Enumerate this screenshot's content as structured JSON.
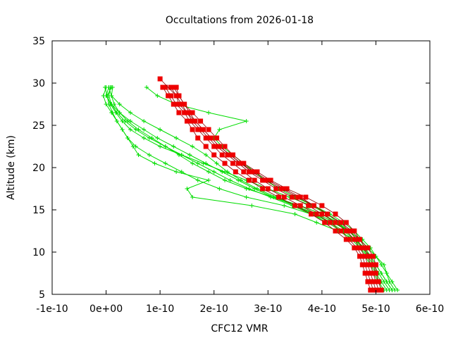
{
  "chart_data": {
    "type": "scatter",
    "title": "Occultations from 2026-01-18",
    "xlabel": "CFC12 VMR",
    "ylabel": "Altitude (km)",
    "xlim": [
      -1e-10,
      6e-10
    ],
    "ylim": [
      5,
      35
    ],
    "grid": false,
    "xticks": [
      {
        "value": -1e-10,
        "label": "-1e-10"
      },
      {
        "value": 0,
        "label": "0e+00"
      },
      {
        "value": 1e-10,
        "label": "1e-10"
      },
      {
        "value": 2e-10,
        "label": "2e-10"
      },
      {
        "value": 3e-10,
        "label": "3e-10"
      },
      {
        "value": 4e-10,
        "label": "4e-10"
      },
      {
        "value": 5e-10,
        "label": "5e-10"
      },
      {
        "value": 6e-10,
        "label": "6e-10"
      }
    ],
    "yticks": [
      {
        "value": 5,
        "label": "5"
      },
      {
        "value": 10,
        "label": "10"
      },
      {
        "value": 15,
        "label": "15"
      },
      {
        "value": 20,
        "label": "20"
      },
      {
        "value": 25,
        "label": "25"
      },
      {
        "value": 30,
        "label": "30"
      },
      {
        "value": 35,
        "label": "35"
      }
    ],
    "altitudes": [
      5.5,
      6.5,
      7.5,
      8.5,
      9.5,
      10.5,
      11.5,
      12.5,
      13.5,
      14.5,
      15.5,
      16.5,
      17.5,
      18.5,
      19.5,
      20.5,
      21.5,
      22.5,
      23.5,
      24.5,
      25.5,
      26.5,
      27.5,
      28.5,
      29.5
    ],
    "series": [
      {
        "name": "occultation-1",
        "color": "#00dd00",
        "marker": "plus",
        "x": [
          5.3e-10,
          5.2e-10,
          5.1e-10,
          5e-10,
          4.9e-10,
          4.8e-10,
          4.6e-10,
          4.3e-10,
          3.9e-10,
          3.5e-10,
          2.7e-10,
          1.6e-10,
          1.5e-10,
          1.9e-10,
          1.3e-10,
          9e-11,
          6e-11,
          5e-11,
          4e-11,
          3e-11,
          2e-11,
          1e-11,
          0.0,
          -5e-12,
          0.0
        ],
        "y": [
          5.5,
          6.5,
          7.5,
          8.5,
          9.5,
          10.5,
          11.5,
          12.5,
          13.5,
          14.5,
          15.5,
          16.5,
          17.5,
          18.5,
          19.5,
          20.5,
          21.5,
          22.5,
          23.5,
          24.5,
          25.5,
          26.5,
          27.5,
          28.5,
          29.5
        ]
      },
      {
        "name": "occultation-2",
        "color": "#00dd00",
        "marker": "plus",
        "x": [
          5.4e-10,
          5.3e-10,
          5.2e-10,
          5.15e-10,
          5e-10,
          4.85e-10,
          4.7e-10,
          4.5e-10,
          4.2e-10,
          3.8e-10,
          3.3e-10,
          2.6e-10,
          2.1e-10,
          1.7e-10,
          1.4e-10,
          1.1e-10,
          8e-11,
          5.5e-11,
          4e-11,
          3e-11,
          2e-11,
          1.2e-11,
          5e-12,
          2e-12,
          1e-11
        ],
        "y": [
          5.5,
          6.5,
          7.5,
          8.5,
          9.5,
          10.5,
          11.5,
          12.5,
          13.5,
          14.5,
          15.5,
          16.5,
          17.5,
          18.5,
          19.5,
          20.5,
          21.5,
          22.5,
          23.5,
          24.5,
          25.5,
          26.5,
          27.5,
          28.5,
          29.5
        ]
      },
      {
        "name": "occultation-3",
        "color": "#00dd00",
        "marker": "plus",
        "x": [
          5.25e-10,
          5.15e-10,
          5.05e-10,
          4.95e-10,
          4.85e-10,
          4.7e-10,
          4.55e-10,
          4.35e-10,
          4.1e-10,
          3.8e-10,
          3.45e-10,
          3.05e-10,
          2.65e-10,
          2.3e-10,
          2e-10,
          1.7e-10,
          1.4e-10,
          1.1e-10,
          8e-11,
          5.5e-11,
          3.5e-11,
          2e-11,
          1e-11,
          5e-12,
          8e-12
        ],
        "y": [
          5.5,
          6.5,
          7.5,
          8.5,
          9.5,
          10.5,
          11.5,
          12.5,
          13.5,
          14.5,
          15.5,
          16.5,
          17.5,
          18.5,
          19.5,
          20.5,
          21.5,
          22.5,
          23.5,
          24.5,
          25.5,
          26.5,
          27.5,
          28.5,
          29.5
        ]
      },
      {
        "name": "occultation-4",
        "color": "#00dd00",
        "marker": "plus",
        "x": [
          5.1e-10,
          5.05e-10,
          5e-10,
          4.95e-10,
          4.9e-10,
          4.8e-10,
          4.7e-10,
          4.5e-10,
          4.25e-10,
          3.9e-10,
          3.5e-10,
          3.1e-10,
          2.75e-10,
          2.45e-10,
          2.15e-10,
          1.85e-10,
          1.55e-10,
          1.25e-10,
          9.5e-11,
          7e-11,
          4.5e-11,
          2.5e-11,
          1e-11,
          0.0,
          5e-12
        ],
        "y": [
          5.5,
          6.5,
          7.5,
          8.5,
          9.5,
          10.5,
          11.5,
          12.5,
          13.5,
          14.5,
          15.5,
          16.5,
          17.5,
          18.5,
          19.5,
          20.5,
          21.5,
          22.5,
          23.5,
          24.5,
          25.5,
          26.5,
          27.5,
          28.5,
          29.5
        ]
      },
      {
        "name": "occultation-5",
        "color": "#00dd00",
        "marker": "plus",
        "x": [
          5.35e-10,
          5.25e-10,
          5.2e-10,
          5.1e-10,
          5e-10,
          4.9e-10,
          4.75e-10,
          4.6e-10,
          4.4e-10,
          4.15e-10,
          3.85e-10,
          3.5e-10,
          3.2e-10,
          2.95e-10,
          2.75e-10,
          2.55e-10,
          2.35e-10,
          2.15e-10,
          2e-10,
          2.1e-10,
          2.6e-10,
          1.9e-10,
          1.3e-10,
          9.5e-11,
          7.5e-11
        ],
        "y": [
          5.5,
          6.5,
          7.5,
          8.5,
          9.5,
          10.5,
          11.5,
          12.5,
          13.5,
          14.5,
          15.5,
          16.5,
          17.5,
          18.5,
          19.5,
          20.5,
          21.5,
          22.5,
          23.5,
          24.5,
          25.5,
          26.5,
          27.5,
          28.5,
          29.5
        ]
      },
      {
        "name": "occultation-6",
        "color": "#00dd00",
        "marker": "plus",
        "x": [
          5.2e-10,
          5.1e-10,
          5e-10,
          4.9e-10,
          4.8e-10,
          4.7e-10,
          4.6e-10,
          4.45e-10,
          4.3e-10,
          4.1e-10,
          3.8e-10,
          3.4e-10,
          3e-10,
          2.6e-10,
          2.2e-10,
          1.8e-10,
          1.4e-10,
          1e-10,
          7e-11,
          4.5e-11,
          3e-11,
          1.8e-11,
          8e-12,
          2e-12,
          -2e-12
        ],
        "y": [
          5.5,
          6.5,
          7.5,
          8.5,
          9.5,
          10.5,
          11.5,
          12.5,
          13.5,
          14.5,
          15.5,
          16.5,
          17.5,
          18.5,
          19.5,
          20.5,
          21.5,
          22.5,
          23.5,
          24.5,
          25.5,
          26.5,
          27.5,
          28.5,
          29.5
        ]
      },
      {
        "name": "occultation-7",
        "color": "#00dd00",
        "marker": "plus",
        "x": [
          5.3e-10,
          5.2e-10,
          5.1e-10,
          5e-10,
          4.9e-10,
          4.75e-10,
          4.6e-10,
          4.4e-10,
          4.15e-10,
          3.85e-10,
          3.5e-10,
          3.15e-10,
          2.8e-10,
          2.5e-10,
          2.25e-10,
          2.05e-10,
          1.85e-10,
          1.6e-10,
          1.3e-10,
          1e-10,
          7e-11,
          4.5e-11,
          2.5e-11,
          1e-11,
          5e-12
        ],
        "y": [
          5.5,
          6.5,
          7.5,
          8.5,
          9.5,
          10.5,
          11.5,
          12.5,
          13.5,
          14.5,
          15.5,
          16.5,
          17.5,
          18.5,
          19.5,
          20.5,
          21.5,
          22.5,
          23.5,
          24.5,
          25.5,
          26.5,
          27.5,
          28.5,
          29.5
        ]
      },
      {
        "name": "occultation-8",
        "color": "#00dd00",
        "marker": "plus",
        "x": [
          5.15e-10,
          5.05e-10,
          4.95e-10,
          4.9e-10,
          4.85e-10,
          4.75e-10,
          4.65e-10,
          4.5e-10,
          4.3e-10,
          4e-10,
          3.6e-10,
          3.1e-10,
          2.6e-10,
          2.2e-10,
          1.9e-10,
          1.6e-10,
          1.35e-10,
          1.1e-10,
          8.5e-11,
          6e-11,
          4e-11,
          2.5e-11,
          1.5e-11,
          1e-11,
          1.2e-11
        ],
        "y": [
          5.5,
          6.5,
          7.5,
          8.5,
          9.5,
          10.5,
          11.5,
          12.5,
          13.5,
          14.5,
          15.5,
          16.5,
          17.5,
          18.5,
          19.5,
          20.5,
          21.5,
          22.5,
          23.5,
          24.5,
          25.5,
          26.5,
          27.5,
          28.5,
          29.5
        ]
      },
      {
        "name": "occultation-red-1",
        "color": "#ee0000",
        "marker": "square",
        "x": [
          4.95e-10,
          4.9e-10,
          4.85e-10,
          4.8e-10,
          4.75e-10,
          4.65e-10,
          4.5e-10,
          4.35e-10,
          4.15e-10,
          3.9e-10,
          3.6e-10,
          3.3e-10,
          3e-10,
          2.75e-10,
          2.55e-10,
          2.35e-10,
          2.15e-10,
          2e-10,
          1.85e-10,
          1.7e-10,
          1.55e-10,
          1.45e-10,
          1.3e-10,
          1.2e-10,
          1.1e-10
        ],
        "y": [
          5.5,
          6.5,
          7.5,
          8.5,
          9.5,
          10.5,
          11.5,
          12.5,
          13.5,
          14.5,
          15.5,
          16.5,
          17.5,
          18.5,
          19.5,
          20.5,
          21.5,
          22.5,
          23.5,
          24.5,
          25.5,
          26.5,
          27.5,
          28.5,
          29.5
        ]
      },
      {
        "name": "occultation-red-2",
        "color": "#ee0000",
        "marker": "square",
        "x": [
          5.05e-10,
          5e-10,
          4.95e-10,
          4.9e-10,
          4.85e-10,
          4.8e-10,
          4.7e-10,
          4.6e-10,
          4.45e-10,
          4.25e-10,
          4e-10,
          3.7e-10,
          3.35e-10,
          3.05e-10,
          2.8e-10,
          2.55e-10,
          2.35e-10,
          2.2e-10,
          2.05e-10,
          1.9e-10,
          1.75e-10,
          1.6e-10,
          1.45e-10,
          1.35e-10,
          1.25e-10
        ],
        "y": [
          5.5,
          6.5,
          7.5,
          8.5,
          9.5,
          10.5,
          11.5,
          12.5,
          13.5,
          14.5,
          15.5,
          16.5,
          17.5,
          18.5,
          19.5,
          20.5,
          21.5,
          22.5,
          23.5,
          24.5,
          25.5,
          26.5,
          27.5,
          28.5,
          29.5
        ]
      },
      {
        "name": "occultation-red-3",
        "color": "#ee0000",
        "marker": "square",
        "x": [
          5e-10,
          4.95e-10,
          4.9e-10,
          4.85e-10,
          4.8e-10,
          4.7e-10,
          4.6e-10,
          4.45e-10,
          4.25e-10,
          4e-10,
          3.75e-10,
          3.45e-10,
          3.15e-10,
          2.9e-10,
          2.65e-10,
          2.45e-10,
          2.25e-10,
          2.05e-10,
          1.9e-10,
          1.75e-10,
          1.6e-10,
          1.5e-10,
          1.4e-10,
          1.3e-10,
          1.2e-10
        ],
        "y": [
          5.5,
          6.5,
          7.5,
          8.5,
          9.5,
          10.5,
          11.5,
          12.5,
          13.5,
          14.5,
          15.5,
          16.5,
          17.5,
          18.5,
          19.5,
          20.5,
          21.5,
          22.5,
          23.5,
          24.5,
          25.5,
          26.5,
          27.5,
          28.5,
          29.5
        ]
      },
      {
        "name": "occultation-red-4",
        "color": "#ee0000",
        "marker": "square",
        "x": [
          4.9e-10,
          4.85e-10,
          4.8e-10,
          4.75e-10,
          4.7e-10,
          4.6e-10,
          4.45e-10,
          4.25e-10,
          4.05e-10,
          3.8e-10,
          3.5e-10,
          3.2e-10,
          2.9e-10,
          2.65e-10,
          2.4e-10,
          2.2e-10,
          2e-10,
          1.85e-10,
          1.7e-10,
          1.6e-10,
          1.5e-10,
          1.35e-10,
          1.25e-10,
          1.15e-10,
          1.05e-10
        ],
        "y": [
          5.5,
          6.5,
          7.5,
          8.5,
          9.5,
          10.5,
          11.5,
          12.5,
          13.5,
          14.5,
          15.5,
          16.5,
          17.5,
          18.5,
          19.5,
          20.5,
          21.5,
          22.5,
          23.5,
          24.5,
          25.5,
          26.5,
          27.5,
          28.5,
          29.5
        ]
      },
      {
        "name": "occultation-red-5",
        "color": "#ee0000",
        "marker": "square",
        "x": [
          null,
          null,
          5e-10,
          4.95e-10,
          4.9e-10,
          4.75e-10,
          4.65e-10,
          4.5e-10,
          4.35e-10,
          4.1e-10,
          3.85e-10,
          3.6e-10,
          3.3e-10,
          3e-10,
          2.75e-10,
          2.5e-10,
          2.3e-10,
          2.1e-10,
          1.95e-10,
          1.8e-10,
          1.65e-10,
          1.55e-10,
          1.45e-10,
          1.35e-10,
          1.3e-10
        ],
        "y": [
          5.5,
          6.5,
          7.5,
          8.5,
          9.5,
          10.5,
          11.5,
          12.5,
          13.5,
          14.5,
          15.5,
          16.5,
          17.5,
          18.5,
          19.5,
          20.5,
          21.5,
          22.5,
          23.5,
          24.5,
          25.5,
          26.5,
          27.5,
          28.5,
          29.5
        ]
      },
      {
        "name": "occultation-red-6",
        "color": "#ee0000",
        "marker": "square",
        "x": [
          5.1e-10,
          5.05e-10,
          5e-10,
          5e-10,
          4.95e-10,
          4.85e-10,
          4.7e-10,
          4.55e-10,
          4.35e-10,
          4.1e-10,
          3.85e-10,
          3.55e-10,
          3.25e-10,
          2.95e-10,
          2.7e-10,
          2.5e-10,
          2.3e-10,
          2.1e-10,
          1.95e-10,
          1.8e-10,
          1.65e-10,
          1.5e-10,
          1.35e-10,
          1.3e-10,
          1e-10
        ],
        "y": [
          5.5,
          6.5,
          7.5,
          8.5,
          9.5,
          10.5,
          11.5,
          12.5,
          13.5,
          14.5,
          15.5,
          16.5,
          17.5,
          18.5,
          19.5,
          20.5,
          21.5,
          22.5,
          23.5,
          24.5,
          25.5,
          26.5,
          27.5,
          28.5,
          30.5
        ]
      }
    ]
  }
}
